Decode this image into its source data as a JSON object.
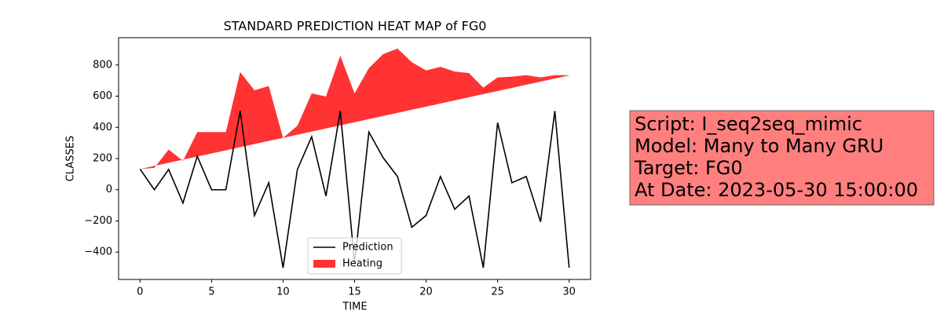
{
  "chart_data": {
    "type": "line",
    "title": "STANDARD PREDICTION HEAT MAP of FG0",
    "xlabel": "TIME",
    "ylabel": "CLASSES",
    "x": [
      0,
      1,
      2,
      3,
      4,
      5,
      6,
      7,
      8,
      9,
      10,
      11,
      12,
      13,
      14,
      15,
      16,
      17,
      18,
      19,
      20,
      21,
      22,
      23,
      24,
      25,
      26,
      27,
      28,
      29,
      30
    ],
    "series": [
      {
        "name": "Prediction",
        "color": "#000000",
        "kind": "line",
        "values": [
          133,
          0,
          130,
          -85,
          215,
          0,
          0,
          505,
          -165,
          45,
          -500,
          130,
          340,
          -40,
          505,
          -470,
          370,
          205,
          85,
          -240,
          -165,
          85,
          -125,
          -40,
          -500,
          430,
          45,
          85,
          -205,
          505,
          -500
        ]
      },
      {
        "name": "Heating",
        "color": "#ff3333",
        "kind": "area",
        "values": [
          133,
          140,
          258,
          185,
          370,
          370,
          370,
          755,
          638,
          665,
          333,
          410,
          618,
          598,
          860,
          618,
          780,
          870,
          905,
          818,
          765,
          788,
          758,
          748,
          655,
          720,
          725,
          735,
          720,
          735,
          735
        ],
        "lower": [
          133,
          153,
          173,
          193,
          213,
          233,
          253,
          273,
          293,
          313,
          333,
          353,
          373,
          393,
          413,
          433,
          453,
          473,
          493,
          513,
          533,
          553,
          573,
          593,
          613,
          633,
          653,
          673,
          693,
          713,
          733
        ]
      }
    ],
    "xlim": [
      -1.5,
      31.5
    ],
    "ylim": [
      -575,
      975
    ],
    "xticks": [
      0,
      5,
      10,
      15,
      20,
      25,
      30
    ],
    "yticks": [
      {
        "value": -400,
        "label": "−400"
      },
      {
        "value": -200,
        "label": "−200"
      },
      0,
      200,
      400,
      600,
      800
    ],
    "legend": "lower center",
    "grid": false,
    "annotation": {
      "lines": [
        "Script: I_seq2seq_mimic",
        "Model: Many to Many GRU",
        "Target: FG0",
        "At Date: 2023-05-30 15:00:00"
      ],
      "color": "#ff7f7f"
    }
  }
}
